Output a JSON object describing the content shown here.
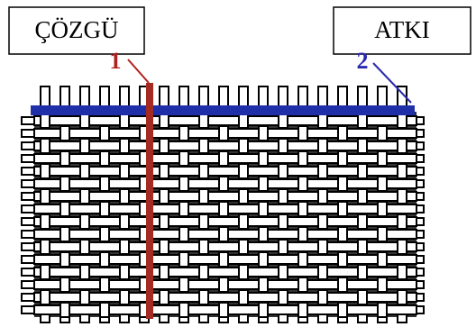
{
  "labels": {
    "warp": "ÇÖZGÜ",
    "weft": "ATKI"
  },
  "markers": {
    "warp": "1",
    "weft": "2"
  }
}
